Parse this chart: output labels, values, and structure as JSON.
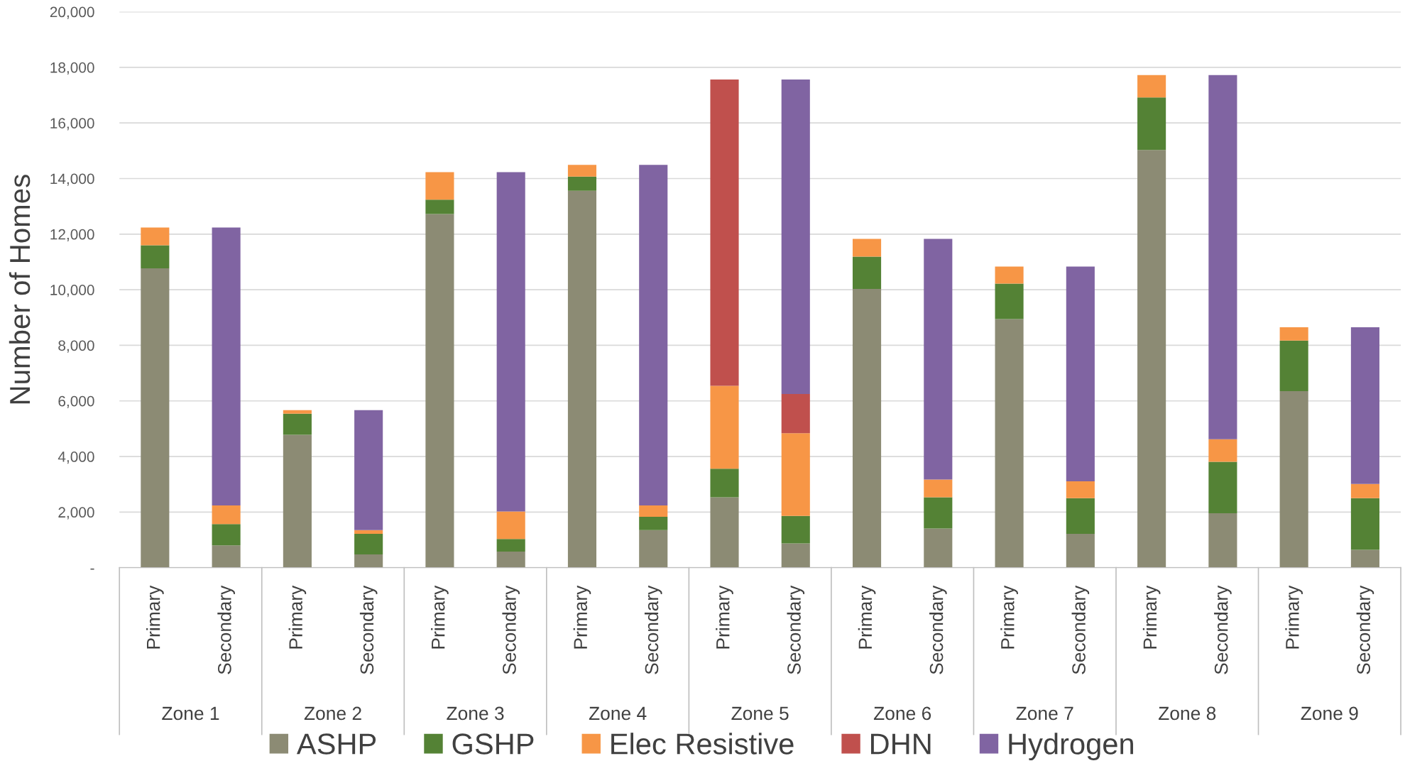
{
  "chart_data": {
    "type": "bar",
    "stacked": true,
    "ylabel": "Number of Homes",
    "categories": [
      "Primary",
      "Secondary",
      "Primary",
      "Secondary",
      "Primary",
      "Secondary",
      "Primary",
      "Secondary",
      "Primary",
      "Secondary",
      "Primary",
      "Secondary",
      "Primary",
      "Secondary",
      "Primary",
      "Secondary",
      "Primary",
      "Secondary"
    ],
    "annotations": [
      "Zone 1",
      "Zone 2",
      "Zone 3",
      "Zone 4",
      "Zone 5",
      "Zone 6",
      "Zone 7",
      "Zone 8",
      "Zone 9"
    ],
    "series": [
      {
        "name": "ASHP",
        "color": "#8c8b74",
        "values": [
          10770,
          800,
          4780,
          480,
          12720,
          580,
          13560,
          1350,
          2530,
          870,
          10030,
          1410,
          8940,
          1220,
          15030,
          1960,
          6350,
          640
        ]
      },
      {
        "name": "GSHP",
        "color": "#548235",
        "values": [
          830,
          770,
          760,
          740,
          520,
          450,
          510,
          480,
          1030,
          990,
          1160,
          1120,
          1280,
          1280,
          1890,
          1850,
          1820,
          1860
        ]
      },
      {
        "name": "Elec Resistive",
        "color": "#f79646",
        "values": [
          640,
          670,
          130,
          130,
          990,
          990,
          420,
          410,
          2980,
          2980,
          640,
          640,
          610,
          610,
          800,
          810,
          480,
          510
        ]
      },
      {
        "name": "DHN",
        "color": "#c0504d",
        "values": [
          0,
          0,
          0,
          0,
          0,
          0,
          0,
          0,
          11020,
          1410,
          0,
          0,
          0,
          0,
          0,
          0,
          0,
          0
        ]
      },
      {
        "name": "Hydrogen",
        "color": "#8064a2",
        "values": [
          0,
          10000,
          0,
          4320,
          0,
          12210,
          0,
          12250,
          0,
          11310,
          0,
          8660,
          0,
          7720,
          0,
          13100,
          0,
          5640
        ]
      }
    ],
    "ylim": [
      0,
      20000
    ],
    "yticks": [
      {
        "value": 0,
        "label": "-"
      },
      {
        "value": 2000,
        "label": "2,000"
      },
      {
        "value": 4000,
        "label": "4,000"
      },
      {
        "value": 6000,
        "label": "6,000"
      },
      {
        "value": 8000,
        "label": "8,000"
      },
      {
        "value": 10000,
        "label": "10,000"
      },
      {
        "value": 12000,
        "label": "12,000"
      },
      {
        "value": 14000,
        "label": "14,000"
      },
      {
        "value": 16000,
        "label": "16,000"
      },
      {
        "value": 18000,
        "label": "18,000"
      },
      {
        "value": 20000,
        "label": "20,000"
      }
    ],
    "grid": "y",
    "legend": "bottom"
  }
}
